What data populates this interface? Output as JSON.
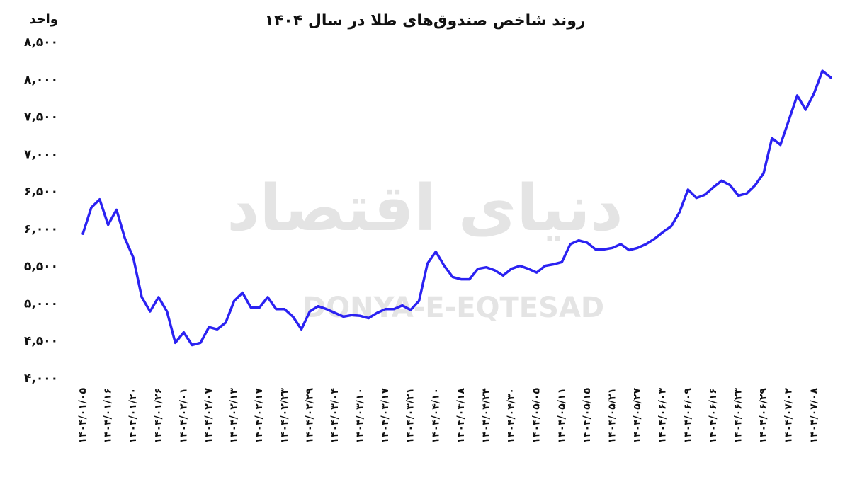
{
  "chart_data": {
    "type": "line",
    "title": "روند شاخص صندوق‌های طلا در سال ۱۴۰۴",
    "y_label": "واحد",
    "watermark": "دنیای اقتصاد",
    "watermark_latin": "DONYA-E-EQTESAD",
    "categories": [
      "۱۴۰۴/۰۱/۰۵",
      null,
      null,
      "۱۴۰۴/۰۱/۱۶",
      null,
      null,
      "۱۴۰۴/۰۱/۲۰",
      null,
      null,
      "۱۴۰۴/۰۱/۲۶",
      null,
      null,
      "۱۴۰۴/۰۲/۰۱",
      null,
      null,
      "۱۴۰۴/۰۲/۰۷",
      null,
      null,
      "۱۴۰۴/۰۲/۱۳",
      null,
      null,
      "۱۴۰۴/۰۲/۱۷",
      null,
      null,
      "۱۴۰۴/۰۲/۲۳",
      null,
      null,
      "۱۴۰۴/۰۲/۲۹",
      null,
      null,
      "۱۴۰۴/۰۳/۰۴",
      null,
      null,
      "۱۴۰۴/۰۳/۱۰",
      null,
      null,
      "۱۴۰۴/۰۳/۱۷",
      null,
      null,
      "۱۴۰۴/۰۳/۲۱",
      null,
      null,
      "۱۴۰۴/۰۴/۱۰",
      null,
      null,
      "۱۴۰۴/۰۴/۱۸",
      null,
      null,
      "۱۴۰۴/۰۴/۲۴",
      null,
      null,
      "۱۴۰۴/۰۴/۳۰",
      null,
      null,
      "۱۴۰۴/۰۵/۰۵",
      null,
      null,
      "۱۴۰۴/۰۵/۱۱",
      null,
      null,
      "۱۴۰۴/۰۵/۱۵",
      null,
      null,
      "۱۴۰۴/۰۵/۲۱",
      null,
      null,
      "۱۴۰۴/۰۵/۲۷",
      null,
      null,
      "۱۴۰۴/۰۶/۰۳",
      null,
      null,
      "۱۴۰۴/۰۶/۰۹",
      null,
      null,
      "۱۴۰۴/۰۶/۱۶",
      null,
      null,
      "۱۴۰۴/۰۶/۲۳",
      null,
      null,
      "۱۴۰۴/۰۶/۲۹",
      null,
      null,
      "۱۴۰۴/۰۷/۰۲",
      null,
      null,
      "۱۴۰۴/۰۷/۰۸",
      null,
      null
    ],
    "values": [
      5940,
      6290,
      6400,
      6060,
      6260,
      5880,
      5620,
      5090,
      4900,
      5090,
      4900,
      4480,
      4620,
      4450,
      4480,
      4690,
      4660,
      4750,
      5040,
      5150,
      4950,
      4950,
      5090,
      4930,
      4930,
      4830,
      4660,
      4900,
      4970,
      4930,
      4880,
      4830,
      4850,
      4840,
      4810,
      4880,
      4930,
      4930,
      4980,
      4920,
      5040,
      5540,
      5700,
      5510,
      5360,
      5330,
      5330,
      5470,
      5490,
      5450,
      5380,
      5470,
      5510,
      5470,
      5420,
      5510,
      5530,
      5560,
      5800,
      5850,
      5820,
      5730,
      5730,
      5750,
      5800,
      5720,
      5750,
      5800,
      5870,
      5960,
      6040,
      6230,
      6530,
      6420,
      6460,
      6560,
      6650,
      6590,
      6450,
      6480,
      6590,
      6750,
      7220,
      7130,
      7460,
      7790,
      7600,
      7820,
      8120,
      8030
    ],
    "color": "#2b22f2",
    "ylim": [
      4000,
      8500
    ],
    "yticks": [
      {
        "value": 4000,
        "label": "۴,۰۰۰"
      },
      {
        "value": 4500,
        "label": "۴,۵۰۰"
      },
      {
        "value": 5000,
        "label": "۵,۰۰۰"
      },
      {
        "value": 5500,
        "label": "۵,۵۰۰"
      },
      {
        "value": 6000,
        "label": "۶,۰۰۰"
      },
      {
        "value": 6500,
        "label": "۶,۵۰۰"
      },
      {
        "value": 7000,
        "label": "۷,۰۰۰"
      },
      {
        "value": 7500,
        "label": "۷,۵۰۰"
      },
      {
        "value": 8000,
        "label": "۸,۰۰۰"
      },
      {
        "value": 8500,
        "label": "۸,۵۰۰"
      }
    ],
    "grid": false
  }
}
